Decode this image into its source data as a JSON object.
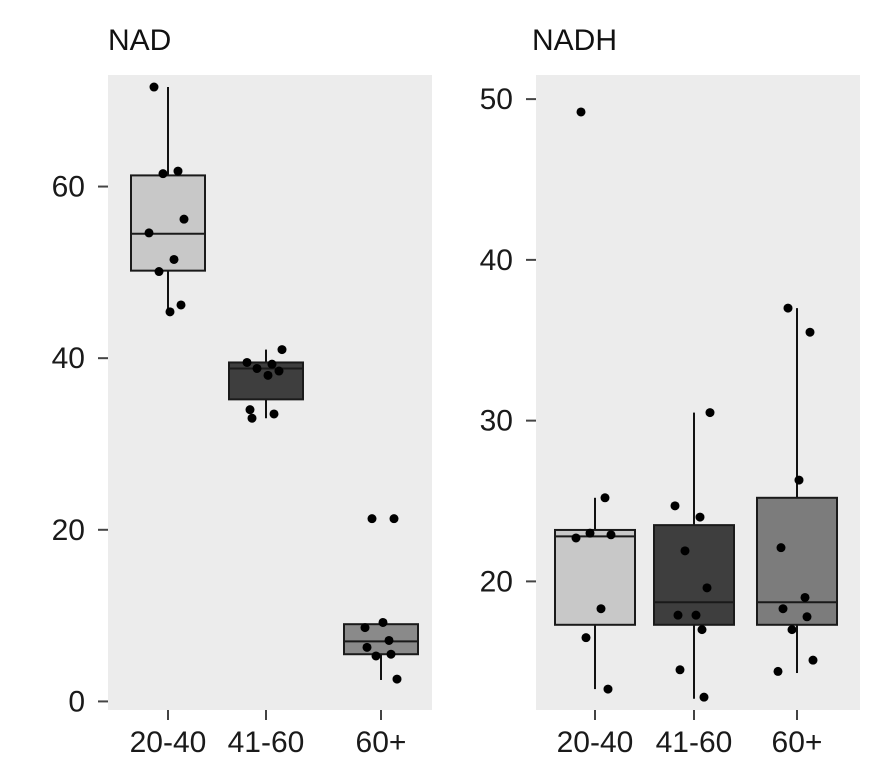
{
  "chart_data": [
    {
      "type": "box",
      "title": "NAD",
      "categories": [
        "20-40",
        "41-60",
        "60+"
      ],
      "yticks": [
        0,
        20,
        40,
        60
      ],
      "ylim": [
        -1,
        73
      ],
      "boxes": [
        {
          "category": "20-40",
          "whisker_low": 45.2,
          "q1": 50.2,
          "median": 54.5,
          "q3": 61.3,
          "whisker_high": 71.6,
          "color": "#c8c8c8",
          "points": [
            71.6,
            61.8,
            61.5,
            56.2,
            54.6,
            51.5,
            50.1,
            46.2,
            45.4
          ]
        },
        {
          "category": "41-60",
          "whisker_low": 33.0,
          "q1": 35.2,
          "median": 38.8,
          "q3": 39.5,
          "whisker_high": 41.0,
          "color": "#3e3e3e",
          "points": [
            41.0,
            39.5,
            39.3,
            38.8,
            38.5,
            38.0,
            34.0,
            33.5,
            33.0
          ]
        },
        {
          "category": "60+",
          "whisker_low": 2.5,
          "q1": 5.5,
          "median": 7.0,
          "q3": 9.0,
          "whisker_high": 9.5,
          "color": "#8a8a8a",
          "points": [
            21.3,
            21.3,
            9.2,
            8.6,
            7.1,
            6.3,
            5.5,
            5.3,
            2.6
          ]
        }
      ]
    },
    {
      "type": "box",
      "title": "NADH",
      "categories": [
        "20-40",
        "41-60",
        "60+"
      ],
      "yticks": [
        20,
        30,
        40,
        50
      ],
      "ylim": [
        12,
        51.5
      ],
      "boxes": [
        {
          "category": "20-40",
          "whisker_low": 13.3,
          "q1": 17.3,
          "median": 22.8,
          "q3": 23.2,
          "whisker_high": 25.2,
          "color": "#c8c8c8",
          "points": [
            49.2,
            25.2,
            23.0,
            22.9,
            22.7,
            18.3,
            16.5,
            13.3
          ]
        },
        {
          "category": "41-60",
          "whisker_low": 12.7,
          "q1": 17.3,
          "median": 18.7,
          "q3": 23.5,
          "whisker_high": 30.5,
          "color": "#3e3e3e",
          "points": [
            30.5,
            24.7,
            24.0,
            21.9,
            19.6,
            17.9,
            17.9,
            17.0,
            14.5,
            12.8
          ]
        },
        {
          "category": "60+",
          "whisker_low": 14.3,
          "q1": 17.3,
          "median": 18.7,
          "q3": 25.2,
          "whisker_high": 37.0,
          "color": "#7c7c7c",
          "points": [
            37.0,
            35.5,
            26.3,
            22.1,
            19.0,
            18.3,
            17.8,
            17.0,
            15.1,
            14.4
          ]
        }
      ]
    }
  ]
}
